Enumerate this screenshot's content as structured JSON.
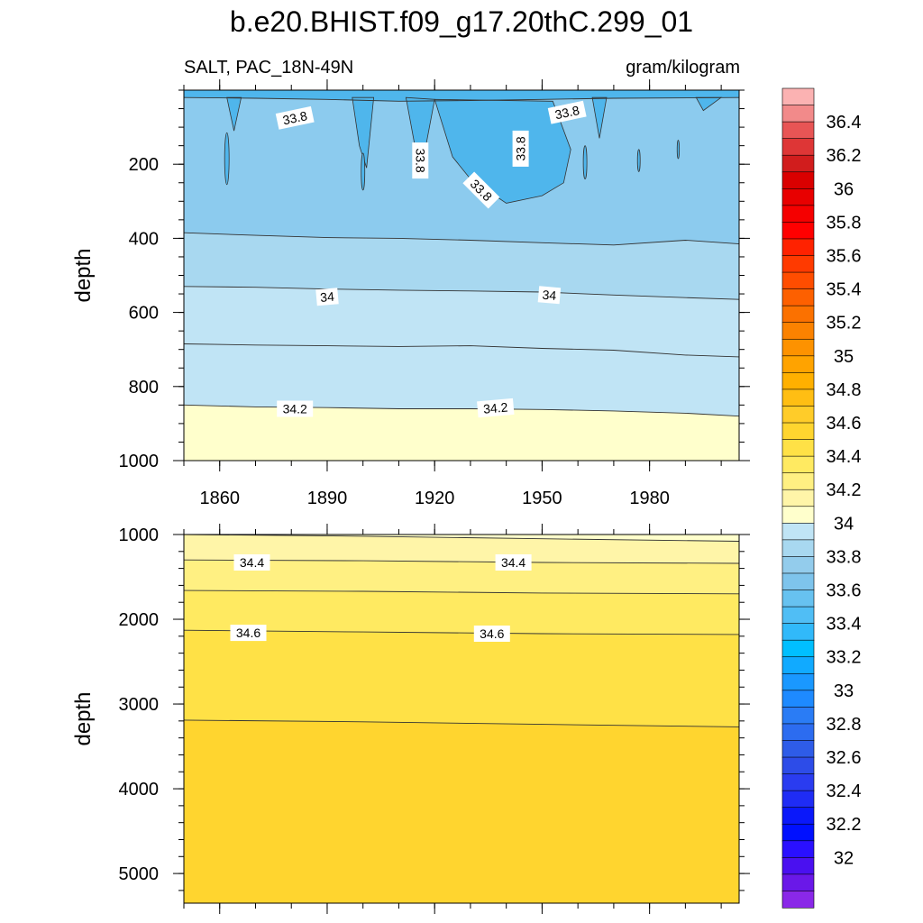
{
  "title": "b.e20.BHIST.f09_g17.20thC.299_01",
  "left_string": "SALT, PAC_18N-49N",
  "right_string": "gram/kilogram",
  "chart_data": [
    {
      "type": "heatmap",
      "panel": "upper",
      "xlabel": "",
      "ylabel": "depth",
      "xlim": [
        1850,
        2005
      ],
      "ylim": [
        1000,
        0
      ],
      "x_ticks": [
        1860,
        1890,
        1920,
        1950,
        1980
      ],
      "y_ticks": [
        200,
        400,
        600,
        800,
        1000
      ],
      "contour_lines": [
        {
          "level": 33.8,
          "x": [
            1850,
            1870,
            1890,
            1910,
            1930,
            1950,
            1970,
            2005
          ],
          "depth": [
            20,
            22,
            25,
            30,
            28,
            25,
            22,
            20
          ]
        },
        {
          "level": 33.9,
          "x": [
            1850,
            1870,
            1890,
            1910,
            1930,
            1950,
            1970,
            1990,
            2005
          ],
          "depth": [
            385,
            392,
            398,
            400,
            405,
            412,
            418,
            405,
            415
          ]
        },
        {
          "level": 34.0,
          "x": [
            1850,
            1870,
            1890,
            1910,
            1930,
            1950,
            1970,
            1990,
            2005
          ],
          "depth": [
            530,
            532,
            537,
            540,
            542,
            545,
            553,
            560,
            565
          ]
        },
        {
          "level": 34.1,
          "x": [
            1850,
            1870,
            1890,
            1910,
            1930,
            1950,
            1970,
            1990,
            2005
          ],
          "depth": [
            685,
            688,
            690,
            692,
            690,
            697,
            702,
            715,
            720
          ]
        },
        {
          "level": 34.2,
          "x": [
            1850,
            1870,
            1890,
            1910,
            1930,
            1950,
            1970,
            1990,
            2005
          ],
          "depth": [
            850,
            855,
            857,
            860,
            860,
            862,
            866,
            872,
            880
          ]
        }
      ],
      "contour_labels": [
        {
          "text": "33.8",
          "x": 1881,
          "depth": 75
        },
        {
          "text": "33.8",
          "x": 1916,
          "depth": 190
        },
        {
          "text": "33.8",
          "x": 1944,
          "depth": 158
        },
        {
          "text": "33.8",
          "x": 1933,
          "depth": 270
        },
        {
          "text": "33.8",
          "x": 1957,
          "depth": 60
        },
        {
          "text": "34",
          "x": 1890,
          "depth": 558
        },
        {
          "text": "34",
          "x": 1952,
          "depth": 553
        },
        {
          "text": "34.2",
          "x": 1881,
          "depth": 860
        },
        {
          "text": "34.2",
          "x": 1937,
          "depth": 858
        }
      ]
    },
    {
      "type": "heatmap",
      "panel": "lower",
      "xlabel": "",
      "ylabel": "depth",
      "xlim": [
        1850,
        2005
      ],
      "ylim": [
        5350,
        1000
      ],
      "y_ticks": [
        1000,
        2000,
        3000,
        4000,
        5000
      ],
      "contour_lines": [
        {
          "level": 34.3,
          "x": [
            1850,
            1900,
            1950,
            2005
          ],
          "depth": [
            1000,
            1020,
            1050,
            1080
          ]
        },
        {
          "level": 34.4,
          "x": [
            1850,
            1900,
            1950,
            2005
          ],
          "depth": [
            1300,
            1310,
            1330,
            1340
          ]
        },
        {
          "level": 34.5,
          "x": [
            1850,
            1900,
            1950,
            2005
          ],
          "depth": [
            1660,
            1670,
            1690,
            1700
          ]
        },
        {
          "level": 34.6,
          "x": [
            1850,
            1900,
            1950,
            2005
          ],
          "depth": [
            2130,
            2150,
            2170,
            2180
          ]
        },
        {
          "level": 34.7,
          "x": [
            1850,
            1900,
            1950,
            2005
          ],
          "depth": [
            3190,
            3210,
            3240,
            3270
          ]
        }
      ],
      "contour_labels": [
        {
          "text": "34.4",
          "x": 1869,
          "depth": 1330
        },
        {
          "text": "34.4",
          "x": 1942,
          "depth": 1330
        },
        {
          "text": "34.6",
          "x": 1868,
          "depth": 2160
        },
        {
          "text": "34.6",
          "x": 1936,
          "depth": 2170
        }
      ]
    }
  ],
  "colorbar": {
    "labels": [
      "36.4",
      "36.2",
      "36",
      "35.8",
      "35.6",
      "35.4",
      "35.2",
      "35",
      "34.8",
      "34.6",
      "34.4",
      "34.2",
      "34",
      "33.8",
      "33.6",
      "33.4",
      "33.2",
      "33",
      "32.8",
      "32.6",
      "32.4",
      "32.2",
      "32"
    ],
    "levels": [
      36.4,
      36.2,
      36.0,
      35.8,
      35.6,
      35.4,
      35.2,
      35.0,
      34.8,
      34.6,
      34.4,
      34.2,
      34.0,
      33.8,
      33.6,
      33.4,
      33.2,
      33.0,
      32.8,
      32.6,
      32.4,
      32.2,
      32.0
    ],
    "colors_top_to_bottom": [
      "#fbb2b2",
      "#f28a8a",
      "#e85555",
      "#de3636",
      "#d11d1d",
      "#da0000",
      "#e80000",
      "#f50000",
      "#ff0000",
      "#ff2200",
      "#ff3a00",
      "#ff4d00",
      "#fd6000",
      "#fb7100",
      "#fb8200",
      "#fd9200",
      "#ffa300",
      "#ffb000",
      "#ffbe13",
      "#ffcc29",
      "#ffd52f",
      "#ffe146",
      "#ffea61",
      "#fff082",
      "#fff5a8",
      "#ffffcc",
      "#c0e4f5",
      "#a8d8f0",
      "#93ccec",
      "#7ec4ec",
      "#67c2f0",
      "#50bef5",
      "#31b9fa",
      "#00bfff",
      "#11aaff",
      "#1a98ff",
      "#1e8aff",
      "#2a7cf5",
      "#2c6cf0",
      "#2e5ce8",
      "#2d4ce8",
      "#2a3cf0",
      "#1f2cf5",
      "#0a18fa",
      "#0010ff",
      "#2a10ff",
      "#4a10f0",
      "#6a18e8",
      "#8a28e8"
    ]
  },
  "colors": {
    "fill_upper_surface": "#4fb6ec",
    "fill_upper_mid": "#8ccbee",
    "fill_upper_low": "#a8d8f0",
    "fill_upper_deep": "#c0e4f5",
    "fill_34_2": "#ffffcc",
    "fill_34_3": "#fff5a8",
    "fill_34_4": "#fff082",
    "fill_34_5": "#ffea61",
    "fill_34_6": "#ffe146",
    "fill_34_7": "#ffd52f"
  }
}
